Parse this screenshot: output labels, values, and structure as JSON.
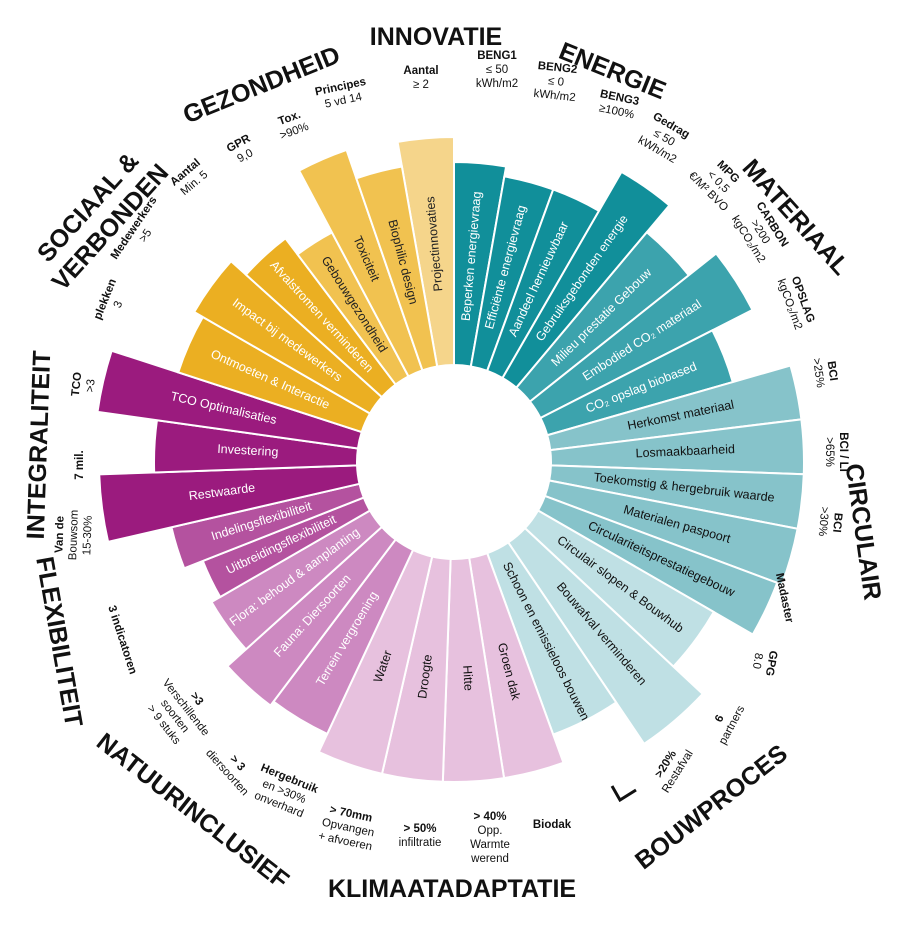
{
  "sectors": [
    {
      "title": [
        "INNOVATIE"
      ],
      "wedges": [
        "Projectinnovaties"
      ]
    },
    {
      "title": [
        "ENERGIE"
      ],
      "wedges": [
        "Beperken energievraag",
        "Efficiënte energievraag",
        "Aandeel hernieuwbaar",
        "Gebruiksgebonden energie"
      ]
    },
    {
      "title": [
        "MATERIAAL"
      ],
      "wedges": [
        "Milieu prestatie Gebouw",
        "Embodied CO₂ materiaal",
        "CO₂ opslag biobased"
      ]
    },
    {
      "title": [
        "CIRCULAIR"
      ],
      "wedges": [
        "Herkomst materiaal",
        "Losmaakbaarheid",
        "Toekomstig & hergebruik waarde",
        "Materialen paspoort",
        "Circulariteitsprestatiegebouw"
      ]
    },
    {
      "title": [
        "BOUWPROCES"
      ],
      "wedges": [
        "Circulair slopen & Bouwhub",
        "Bouwafval verminderen",
        "Schoon en emissieloos bouwen"
      ]
    },
    {
      "title": [
        "KLIMAATADAPTATIE"
      ],
      "wedges": [
        "Groen dak",
        "Hitte",
        "Droogte",
        "Water"
      ]
    },
    {
      "title": [
        "NATUURINCLUSIEF"
      ],
      "wedges": [
        "Terrein vergroening",
        "Fauna: Diersoorten",
        "Flora: behoud & aanplanting"
      ]
    },
    {
      "title": [
        "FLEXIBILITEIT"
      ],
      "wedges": [
        "Uitbreidingsflexibiliteit",
        "Indelingsflexibiliteit"
      ]
    },
    {
      "title": [
        "INTEGRALITEIT"
      ],
      "wedges": [
        "Restwaarde",
        "Investering",
        "TCO Optimalisaties"
      ]
    },
    {
      "title": [
        "SOCIAAL &",
        "VERBONDEN"
      ],
      "wedges": [
        "Ontmoeten & Interactie",
        "Impact bij medewerkers",
        "Afvalstromen verminderen"
      ]
    },
    {
      "title": [
        "GEZONDHEID"
      ],
      "wedges": [
        "Gebouwgezondheid",
        "Toxiciteit",
        "Biophilic design"
      ]
    }
  ],
  "criteria": [
    {
      "lines": [
        "Aantal",
        "≥ 2"
      ]
    },
    {
      "lines": [
        "BENG1",
        "≤ 50",
        "kWh/m2"
      ]
    },
    {
      "lines": [
        "BENG2",
        "≤ 0",
        "kWh/m2"
      ]
    },
    {
      "lines": [
        "BENG3",
        "≥100%"
      ]
    },
    {
      "lines": [
        "Gedrag",
        "≤ 50",
        "kWh/m2"
      ]
    },
    {
      "lines": [
        "MPG",
        "< 0,5",
        "€/M² BVO"
      ]
    },
    {
      "lines": [
        "CARBON",
        ">200",
        "kgCO₂/m2"
      ]
    },
    {
      "lines": [
        "OPSLAG",
        "kgCO₂/m2"
      ]
    },
    {
      "lines": [
        "BCI",
        ">25%"
      ]
    },
    {
      "lines": [
        "BCI / LI",
        ">65%"
      ]
    },
    {
      "lines": [
        "BCI",
        ">30%"
      ]
    },
    {
      "lines": [
        "Madaster"
      ]
    },
    {
      "lines": [
        "GPG",
        "8.0"
      ]
    },
    {
      "lines": [
        "6",
        "partners"
      ]
    },
    {
      "lines": [
        ">20%",
        "Restafval"
      ]
    },
    {
      "lines": [
        "Biodak"
      ]
    },
    {
      "lines": [
        "> 40%",
        "Opp.",
        "Warmte",
        "werend"
      ]
    },
    {
      "lines": [
        "> 50%",
        "infiltratie"
      ]
    },
    {
      "lines": [
        "> 70mm",
        "Opvangen",
        "+ afvoeren"
      ]
    },
    {
      "lines": [
        "Hergebruik",
        "en >30%",
        "onverhard"
      ]
    },
    {
      "lines": [
        "> 3",
        "diersoorten"
      ]
    },
    {
      "lines": [
        ">3",
        "Verschillende",
        "soorten",
        "> 9 stuks"
      ]
    },
    {
      "lines": [
        "3 indicatoren"
      ]
    },
    {
      "lines": [
        "Van de",
        "Bouwsom",
        "15-30%"
      ]
    },
    {
      "lines": [
        "7 mil."
      ]
    },
    {
      "lines": [
        "TCO",
        ">3"
      ]
    },
    {
      "lines": [
        "plekken",
        "3"
      ]
    },
    {
      "lines": [
        "Medewerkers",
        ">5"
      ]
    },
    {
      "lines": [
        "Aantal",
        "Min. 5"
      ]
    },
    {
      "lines": [
        "GPR",
        "9,0"
      ]
    },
    {
      "lines": [
        "Tox.",
        ">90%"
      ]
    },
    {
      "lines": [
        "Principes",
        "5 vd 14"
      ]
    }
  ]
}
